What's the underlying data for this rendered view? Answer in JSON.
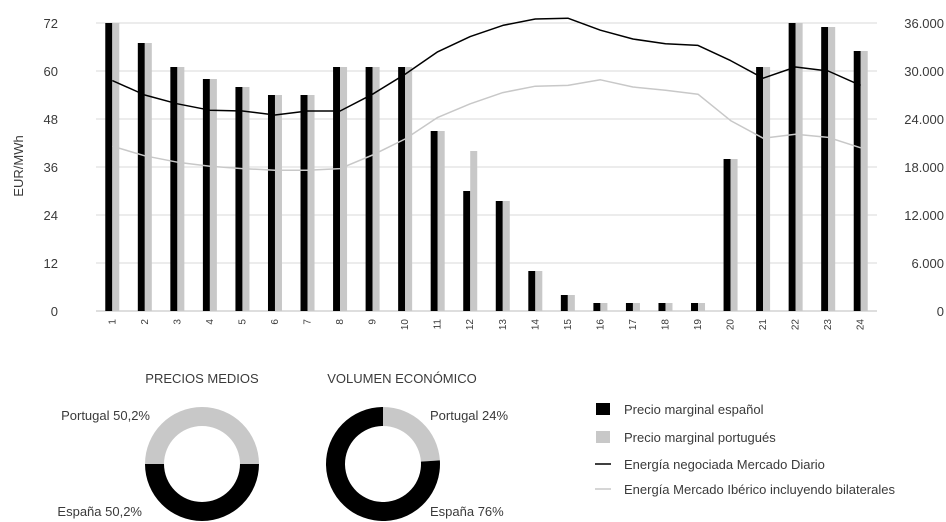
{
  "chart_data": [
    {
      "type": "bar+line",
      "ylabel": "EUR/MWh",
      "ylim": [
        0,
        72
      ],
      "y_ticks": [
        "0",
        "12",
        "24",
        "36",
        "48",
        "60",
        "72"
      ],
      "y2lim": [
        0,
        36000
      ],
      "y2_ticks": [
        "0",
        "6.000",
        "12.000",
        "18.000",
        "24.000",
        "30.000",
        "36.000"
      ],
      "categories": [
        "1",
        "2",
        "3",
        "4",
        "5",
        "6",
        "7",
        "8",
        "9",
        "10",
        "11",
        "12",
        "13",
        "14",
        "15",
        "16",
        "17",
        "18",
        "19",
        "20",
        "21",
        "22",
        "23",
        "24"
      ],
      "grid": true,
      "series": [
        {
          "name": "Precio marginal español",
          "kind": "bar",
          "axis": "left",
          "color": "#000000",
          "values": [
            72,
            67,
            61,
            58,
            56,
            54,
            54,
            61,
            61,
            61,
            45,
            30,
            27.5,
            10,
            4,
            2,
            2,
            2,
            2,
            38,
            61,
            72,
            71,
            65
          ]
        },
        {
          "name": "Precio marginal portugués",
          "kind": "bar",
          "axis": "left",
          "color": "#c8c8c8",
          "values": [
            72,
            67,
            61,
            58,
            56,
            54,
            54,
            61,
            61,
            61,
            45,
            40,
            27.5,
            10,
            4,
            2,
            2,
            2,
            2,
            38,
            61,
            72,
            71,
            65
          ]
        },
        {
          "name": "Energía negociada Mercado Diario",
          "kind": "line",
          "axis": "right",
          "color": "#000000",
          "values": [
            28800,
            27000,
            25900,
            25100,
            25000,
            24500,
            25000,
            25000,
            27100,
            29600,
            32400,
            34300,
            35700,
            36500,
            36600,
            35100,
            34000,
            33400,
            33200,
            31300,
            29100,
            30500,
            30000,
            28200
          ]
        },
        {
          "name": "Energía Mercado Ibérico incluyendo bilaterales",
          "kind": "line",
          "axis": "right",
          "color": "#c8c8c8",
          "values": [
            20600,
            19400,
            18600,
            18100,
            17800,
            17600,
            17600,
            17800,
            19500,
            21500,
            24200,
            25900,
            27300,
            28100,
            28200,
            28900,
            28000,
            27600,
            27100,
            23800,
            21600,
            22100,
            21700,
            20400
          ]
        }
      ]
    },
    {
      "type": "pie",
      "title": "PRECIOS MEDIOS",
      "slices": [
        {
          "label": "Portugal 50,2%",
          "value": 50.2,
          "color": "#c8c8c8"
        },
        {
          "label": "España 50,2%",
          "value": 50.2,
          "color": "#000000"
        }
      ]
    },
    {
      "type": "pie",
      "title": "VOLUMEN ECONÓMICO",
      "slices": [
        {
          "label": "Portugal 24%",
          "value": 24,
          "color": "#c8c8c8"
        },
        {
          "label": "España 76%",
          "value": 76,
          "color": "#000000"
        }
      ]
    }
  ]
}
